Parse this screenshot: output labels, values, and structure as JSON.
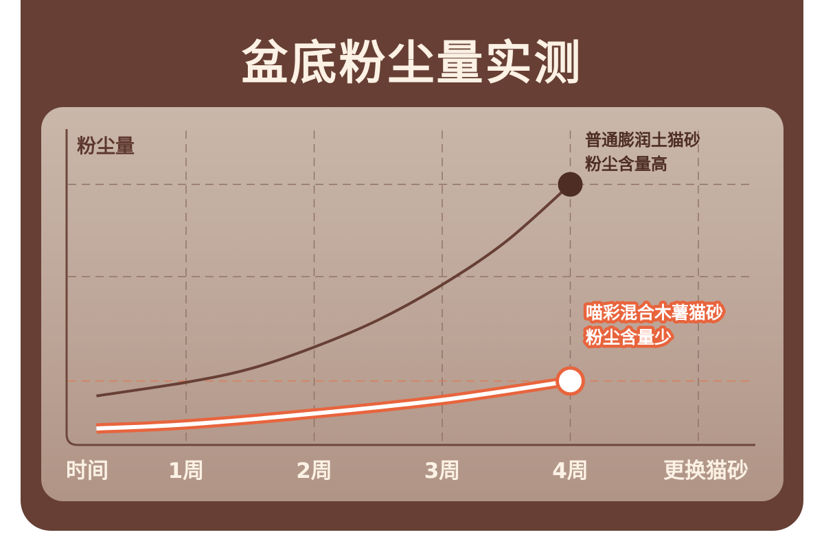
{
  "title": "盆底粉尘量实测",
  "chart_data": {
    "type": "line",
    "ylabel": "粉尘量",
    "xlabel": "时间",
    "categories": [
      "1周",
      "2周",
      "3周",
      "4周",
      "更换猫砂"
    ],
    "x": [
      0,
      1,
      2,
      3,
      4
    ],
    "ylim": [
      0,
      10
    ],
    "grid": true,
    "series": [
      {
        "name": "普通膨润土猫砂",
        "label_lines": [
          "普通膨润土猫砂",
          "粉尘含量高"
        ],
        "color": "#673f34",
        "x": [
          -0.7,
          0,
          0.5,
          1,
          1.5,
          2,
          2.5,
          3
        ],
        "values": [
          2.2,
          2.7,
          3.2,
          4.0,
          5.0,
          6.3,
          7.9,
          10.0
        ]
      },
      {
        "name": "喵彩混合木薯猫砂",
        "label_lines": [
          "喵彩混合木薯猫砂",
          "粉尘含量少"
        ],
        "color": "#e8643d",
        "x": [
          -0.7,
          0,
          1,
          2,
          3
        ],
        "values": [
          1.0,
          1.15,
          1.55,
          2.05,
          2.75
        ]
      }
    ]
  }
}
